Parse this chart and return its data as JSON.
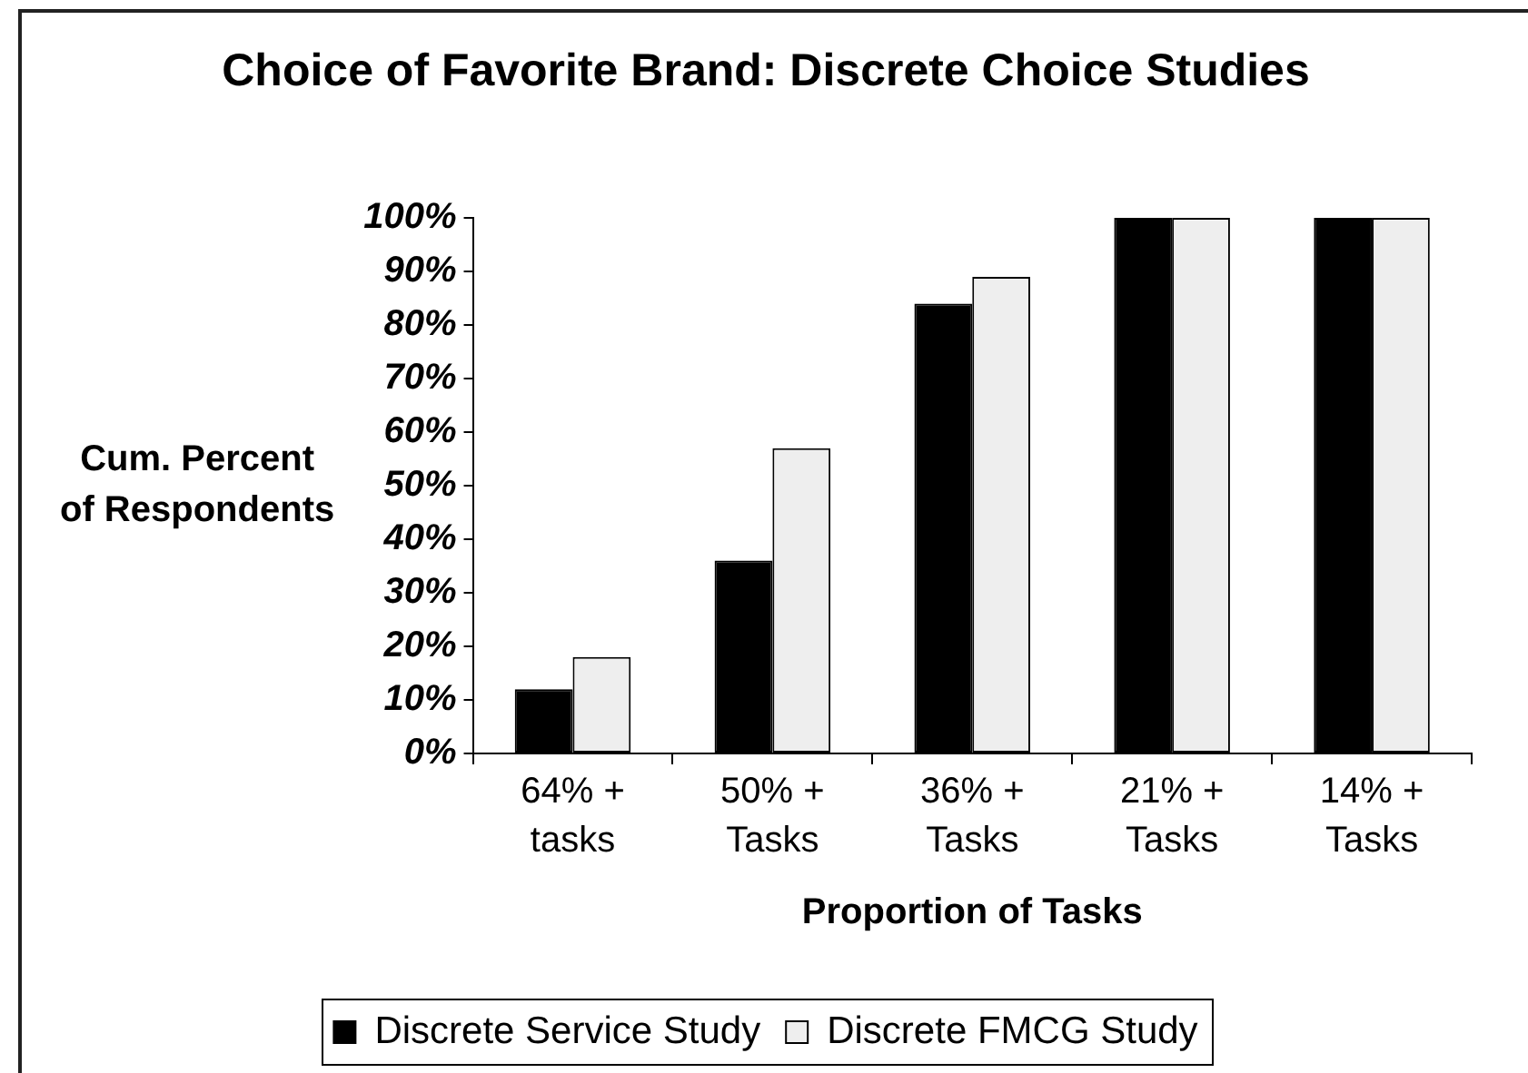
{
  "chart_data": {
    "type": "bar",
    "title": "Choice of Favorite Brand: Discrete Choice Studies",
    "xlabel": "Proportion of Tasks",
    "ylabel": "Cum. Percent of Respondents",
    "categories": [
      "64% + tasks",
      "50% + Tasks",
      "36% + Tasks",
      "21% + Tasks",
      "14% + Tasks"
    ],
    "series": [
      {
        "name": "Discrete Service Study",
        "color": "#000000",
        "values": [
          12,
          36,
          84,
          100,
          100
        ]
      },
      {
        "name": "Discrete FMCG Study",
        "color": "#eeeeee",
        "values": [
          18,
          57,
          89,
          100,
          100
        ]
      }
    ],
    "ylim": [
      0,
      100
    ],
    "yticks": [
      {
        "value": 0,
        "label": "0%"
      },
      {
        "value": 10,
        "label": "10%"
      },
      {
        "value": 20,
        "label": "20%"
      },
      {
        "value": 30,
        "label": "30%"
      },
      {
        "value": 40,
        "label": "40%"
      },
      {
        "value": 50,
        "label": "50%"
      },
      {
        "value": 60,
        "label": "60%"
      },
      {
        "value": 70,
        "label": "70%"
      },
      {
        "value": 80,
        "label": "80%"
      },
      {
        "value": 90,
        "label": "90%"
      },
      {
        "value": 100,
        "label": "100%"
      }
    ],
    "legend": "bottom"
  }
}
